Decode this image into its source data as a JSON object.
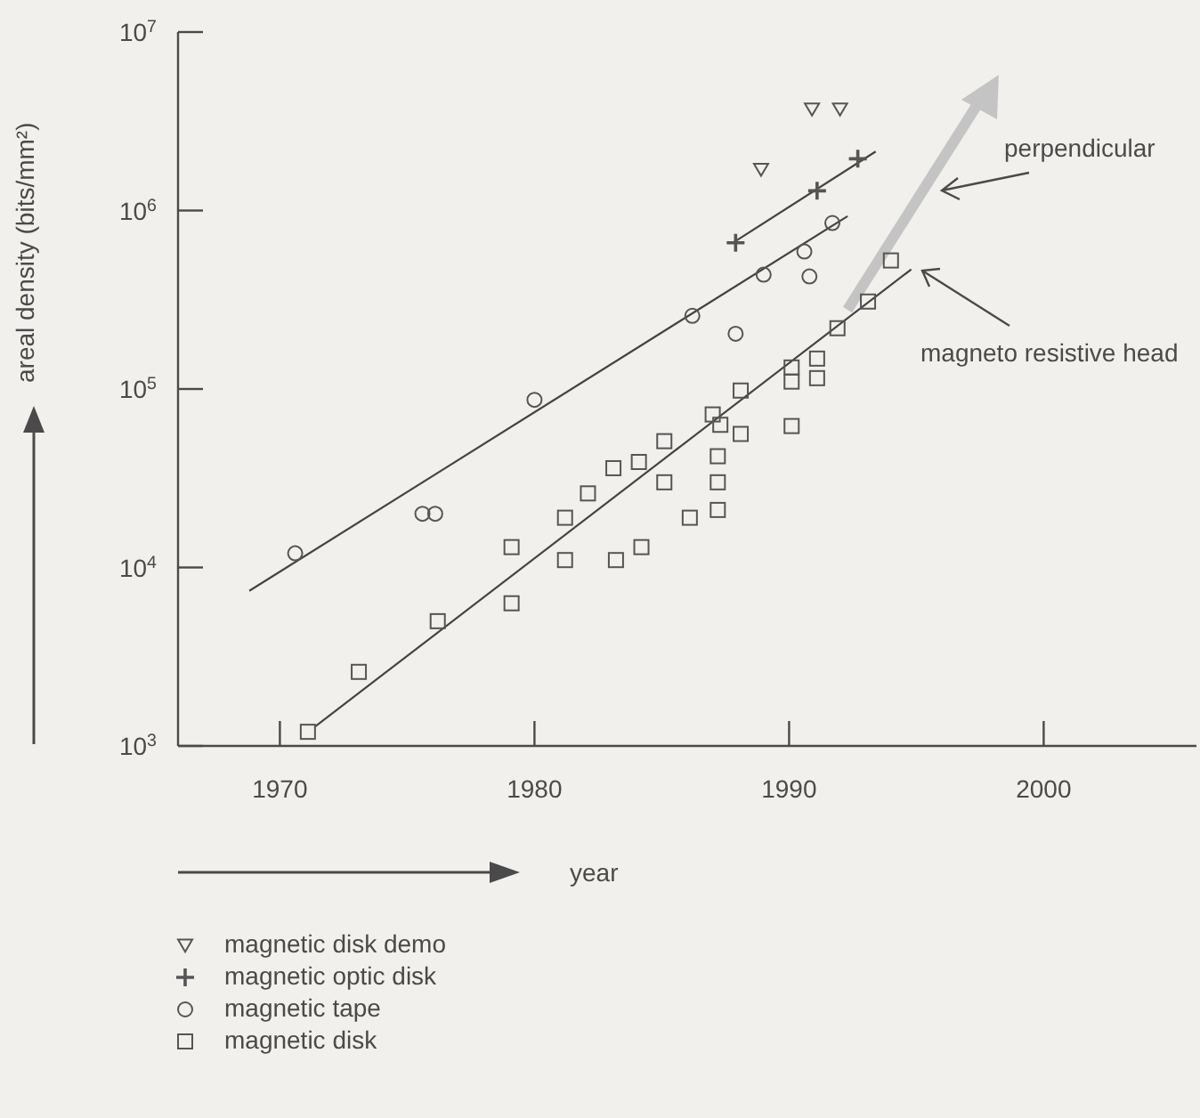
{
  "chart_data": {
    "type": "scatter",
    "xlabel": "year",
    "ylabel": "areal density (bits/mm²)",
    "log": "y",
    "xlim": [
      1966,
      2006
    ],
    "ylim": [
      1000,
      10000000
    ],
    "xticks": [
      1970,
      1980,
      1990,
      2000
    ],
    "yticks": [
      {
        "value": 1000,
        "label": "10$^{3}$"
      },
      {
        "value": 10000,
        "label": "10$^{4}$"
      },
      {
        "value": 100000,
        "label": "10$^{5}$"
      },
      {
        "value": 1000000,
        "label": "10$^{6}$"
      },
      {
        "value": 10000000,
        "label": "10$^{7}$"
      }
    ],
    "grid": false,
    "legend": "bottom",
    "annotations": [
      "perpendicular",
      "magneto resistive head"
    ],
    "series": [
      {
        "name": "magnetic disk demo",
        "marker": "triangle",
        "color": "#555555",
        "x": [
          1988.9,
          1990.9,
          1992.0
        ],
        "values": [
          1700000,
          3700000,
          3700000
        ]
      },
      {
        "name": "magnetic optic disk",
        "marker": "cross",
        "color": "#555555",
        "x": [
          1987.9,
          1991.1,
          1992.7
        ],
        "values": [
          660000,
          1290000,
          1950000
        ]
      },
      {
        "name": "magnetic tape",
        "marker": "circle",
        "color": "#555555",
        "x": [
          1970.6,
          1975.6,
          1976.1,
          1980.0,
          1986.2,
          1987.9,
          1989.0,
          1990.6,
          1990.8,
          1991.7
        ],
        "values": [
          12000,
          20000,
          20000,
          87000,
          257000,
          204000,
          437000,
          589000,
          427000,
          851000
        ]
      },
      {
        "name": "magnetic disk",
        "marker": "square",
        "color": "#555555",
        "x": [
          1971.1,
          1973.1,
          1976.2,
          1979.1,
          1979.1,
          1981.2,
          1981.2,
          1982.1,
          1983.1,
          1984.1,
          1985.1,
          1985.1,
          1983.2,
          1984.2,
          1986.1,
          1987.2,
          1987.2,
          1987.2,
          1987.0,
          1987.3,
          1988.1,
          1988.1,
          1990.1,
          1990.1,
          1990.1,
          1991.1,
          1991.1,
          1991.9,
          1993.1,
          1994.0
        ],
        "values": [
          1200,
          2600,
          5000,
          13000,
          6300,
          19000,
          11000,
          26000,
          36000,
          39000,
          51000,
          30000,
          11000,
          13000,
          19000,
          21000,
          30000,
          42000,
          72000,
          63000,
          56000,
          98000,
          62000,
          132000,
          110000,
          148000,
          115000,
          219000,
          309000,
          525000
        ]
      },
      {
        "type": "line",
        "color": "#444444",
        "x": [
          1968.8,
          1992.3
        ],
        "values": [
          7400,
          930000
        ]
      },
      {
        "type": "line",
        "color": "#444444",
        "x": [
          1987.8,
          1993.4
        ],
        "values": [
          660000,
          2140000
        ]
      },
      {
        "type": "line",
        "color": "#444444",
        "x": [
          1971.4,
          1994.8
        ],
        "values": [
          1290,
          468000
        ]
      }
    ]
  }
}
